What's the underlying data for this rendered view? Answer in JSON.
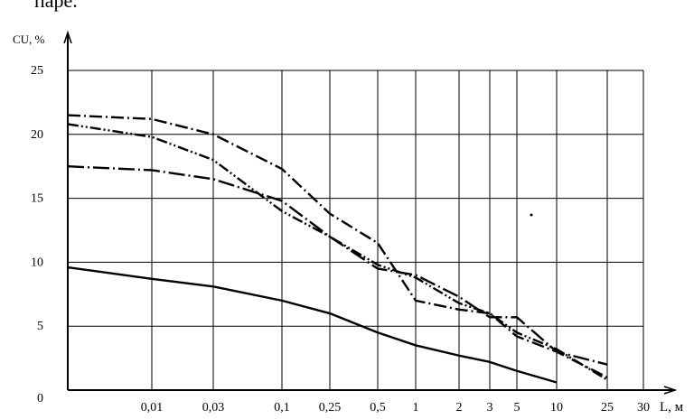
{
  "top_text": "паре.",
  "chart_data": {
    "type": "line",
    "ylabel": "CU, %",
    "xlabel": "L, м",
    "ylim": [
      0,
      25
    ],
    "yticks": [
      "0",
      "5",
      "10",
      "15",
      "20",
      "25"
    ],
    "xticks": [
      "0,01",
      "0,03",
      "0,1",
      "0,25",
      "0,5",
      "1",
      "2",
      "3",
      "5",
      "10",
      "25",
      "30"
    ],
    "grid": true,
    "colors": {
      "line": "#000000",
      "grid": "#000000"
    },
    "series": [
      {
        "style": "solid",
        "x": [
          "start",
          "0,01",
          "0,03",
          "0,1",
          "0,25",
          "0,5",
          "1",
          "2",
          "3",
          "5",
          "10"
        ],
        "values": [
          9.6,
          8.7,
          8.1,
          7.0,
          6.0,
          4.5,
          3.5,
          2.7,
          2.2,
          1.5,
          0.6
        ]
      },
      {
        "style": "dash-dot",
        "x": [
          "start",
          "0,01",
          "0,03",
          "0,1",
          "0,25",
          "0,5",
          "1",
          "2",
          "3",
          "5",
          "10",
          "25"
        ],
        "values": [
          21.5,
          21.2,
          20.0,
          17.3,
          13.8,
          11.5,
          7.0,
          6.3,
          6.0,
          4.2,
          3.0,
          1.0
        ]
      },
      {
        "style": "dash-dot-dot",
        "x": [
          "start",
          "0,01",
          "0,03",
          "0,1",
          "0,25",
          "0,5",
          "1",
          "2",
          "3",
          "5",
          "10",
          "25"
        ],
        "values": [
          20.8,
          19.8,
          18.0,
          14.0,
          12.0,
          9.8,
          8.8,
          6.8,
          6.0,
          4.5,
          3.2,
          0.8
        ]
      },
      {
        "style": "dash-dot-long",
        "x": [
          "start",
          "0,01",
          "0,03",
          "0,1",
          "0,25",
          "0,5",
          "1",
          "2",
          "3",
          "5",
          "10",
          "25"
        ],
        "values": [
          17.5,
          17.2,
          16.5,
          14.8,
          12.0,
          9.5,
          9.0,
          7.3,
          5.7,
          5.7,
          3.0,
          2.0
        ]
      }
    ]
  }
}
